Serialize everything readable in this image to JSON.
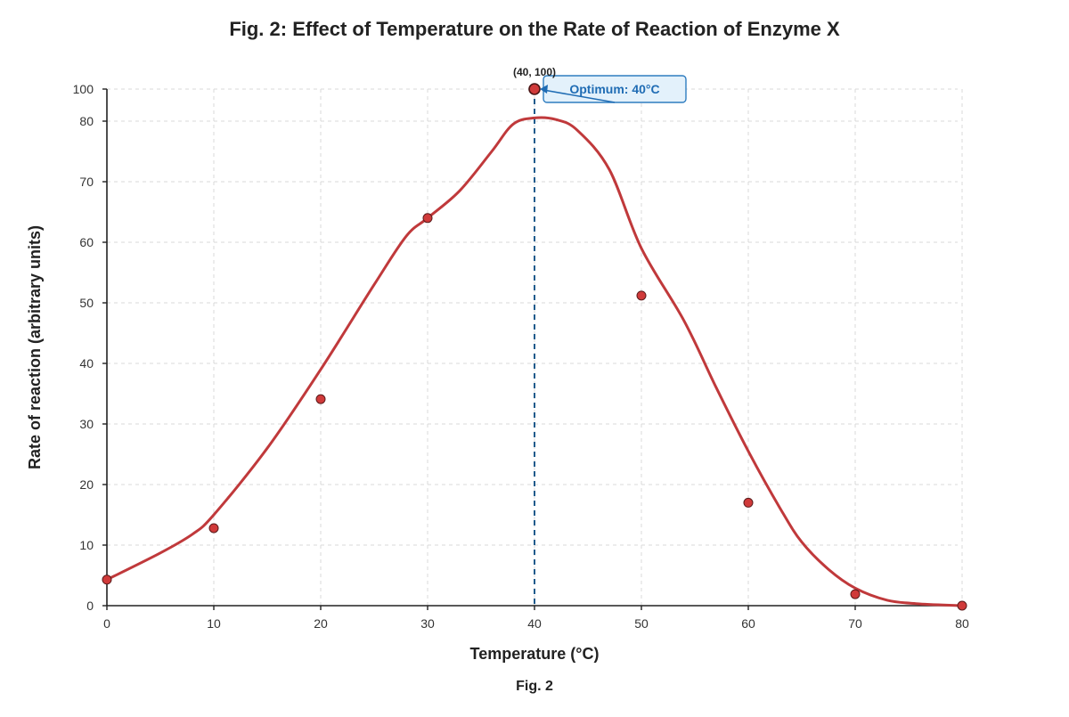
{
  "chart_data": {
    "type": "line",
    "title": "Fig. 2: Effect of Temperature on the Rate of Reaction of Enzyme X",
    "xlabel": "Temperature (°C)",
    "ylabel": "Rate of reaction (arbitrary units)",
    "caption": "Fig. 2",
    "xlim": [
      0,
      80
    ],
    "ylim": [
      0,
      100
    ],
    "x_ticks": [
      0,
      10,
      20,
      30,
      40,
      50,
      60,
      70,
      80
    ],
    "y_ticks": [
      0,
      10,
      20,
      30,
      40,
      50,
      60,
      70,
      80,
      100
    ],
    "grid": true,
    "points": [
      {
        "x": 0,
        "y": 4.3
      },
      {
        "x": 10,
        "y": 12.8
      },
      {
        "x": 20,
        "y": 34.1
      },
      {
        "x": 30,
        "y": 64
      },
      {
        "x": 40,
        "y": 100
      },
      {
        "x": 50,
        "y": 51.2
      },
      {
        "x": 60,
        "y": 17
      },
      {
        "x": 70,
        "y": 1.9
      },
      {
        "x": 80,
        "y": 0
      }
    ],
    "fit_curve": {
      "x": [
        0,
        5,
        8,
        10,
        15,
        20,
        25,
        28,
        30,
        33,
        36,
        38,
        40,
        42,
        44,
        47,
        50,
        54,
        57,
        60,
        63,
        65,
        67.5,
        70,
        73,
        76,
        80
      ],
      "y": [
        4.3,
        8.7,
        11.8,
        15,
        26,
        39,
        53,
        61,
        64,
        68.5,
        75,
        79.5,
        82,
        81,
        78.5,
        72,
        59,
        47,
        36,
        25.5,
        16,
        10.5,
        6,
        2.9,
        0.9,
        0.3,
        0
      ]
    },
    "highlight": {
      "x": 40,
      "y": 100,
      "label": "(40, 100)"
    },
    "annotation": {
      "text": "Optimum: 40°C",
      "x": 40
    },
    "colors": {
      "curve": "#c0393b",
      "points": "#d03a3a",
      "optimum_line": "#1f5b8c",
      "annotation_text": "#1f6cb4",
      "annotation_box": "#e3f1fb"
    }
  }
}
